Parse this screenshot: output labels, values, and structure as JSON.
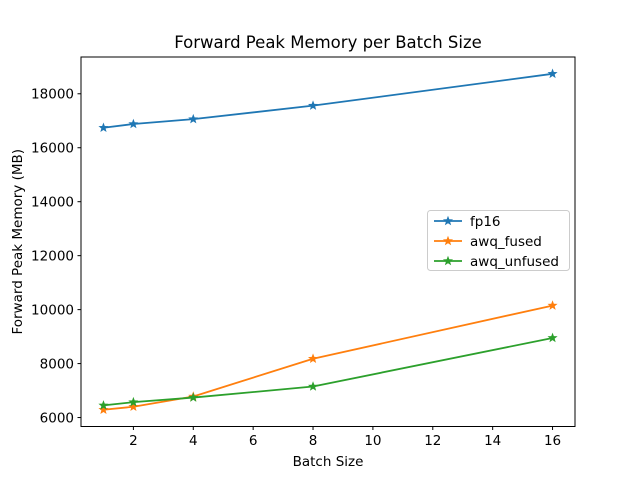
{
  "figure": {
    "background": "#ffffff"
  },
  "chart_data": {
    "type": "line",
    "title": "Forward Peak Memory per Batch Size",
    "xlabel": "Batch Size",
    "ylabel": "Forward Peak Memory (MB)",
    "x": [
      1,
      2,
      4,
      8,
      16
    ],
    "series": [
      {
        "name": "fp16",
        "color": "#1f77b4",
        "marker": "star",
        "values": [
          16740,
          16880,
          17060,
          17560,
          18740
        ]
      },
      {
        "name": "awq_fused",
        "color": "#ff7f0e",
        "marker": "star",
        "values": [
          6290,
          6400,
          6780,
          8180,
          10150
        ]
      },
      {
        "name": "awq_unfused",
        "color": "#2ca02c",
        "marker": "star",
        "values": [
          6450,
          6570,
          6740,
          7150,
          8950
        ]
      }
    ],
    "xticks": [
      2,
      4,
      6,
      8,
      10,
      12,
      14,
      16
    ],
    "yticks": [
      6000,
      8000,
      10000,
      12000,
      14000,
      16000,
      18000
    ],
    "xlim": [
      0.25,
      16.75
    ],
    "ylim": [
      5668,
      19363
    ],
    "grid": false,
    "legend": {
      "position": "center right"
    },
    "axis_color": "#000000",
    "legend_border_color": "#cccccc",
    "plot_background": "#ffffff"
  }
}
